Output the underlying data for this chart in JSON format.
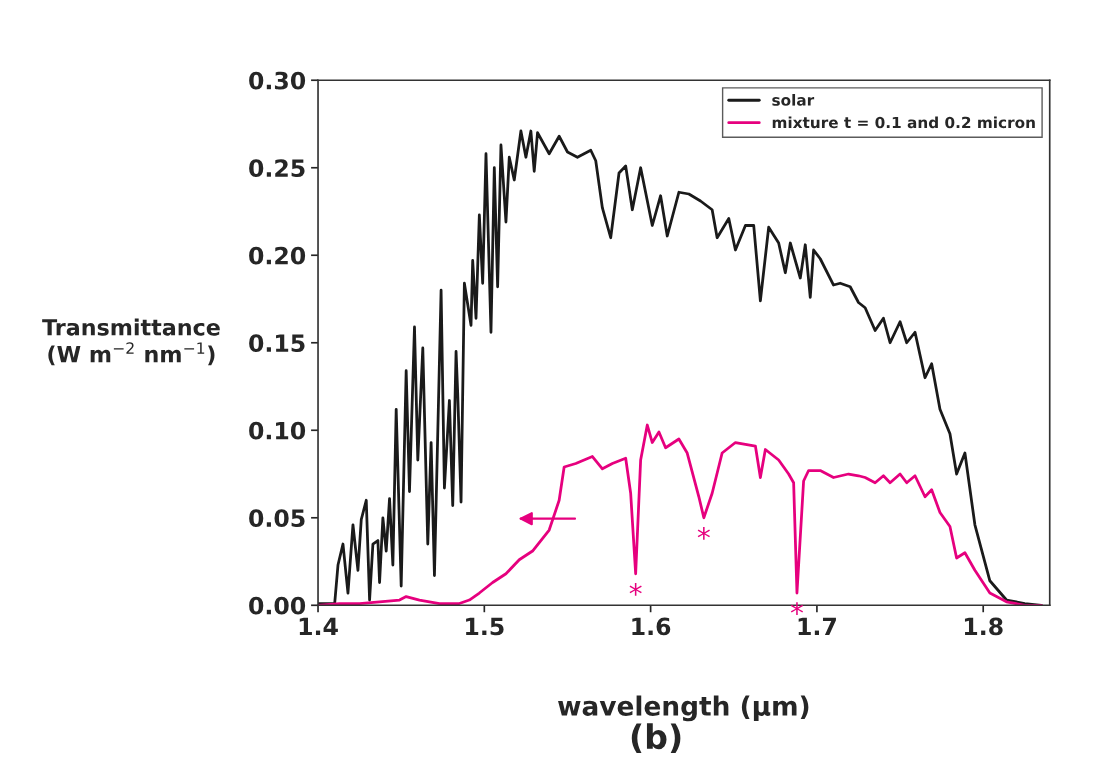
{
  "chart_data": {
    "type": "line",
    "xlabel": "wavelength (μm)",
    "ylabel": "Transmittance\n(W m$^{−2}$ nm$^{−1}$)",
    "xlim": [
      1.4,
      1.84
    ],
    "xticks": [
      1.4,
      1.5,
      1.6,
      1.7,
      1.8
    ],
    "ylim": [
      0,
      0.3
    ],
    "yticks": [
      {
        "value": 0,
        "label": "0.00"
      },
      {
        "value": 0.05,
        "label": "0.05"
      },
      {
        "value": 0.1,
        "label": "0.10"
      },
      {
        "value": 0.15,
        "label": "0.15"
      },
      {
        "value": 0.2,
        "label": "0.20"
      },
      {
        "value": 0.25,
        "label": "0.25"
      },
      {
        "value": 0.3,
        "label": "0.30"
      }
    ],
    "grid": false,
    "legend": "top right",
    "marker": "none",
    "line_style": "solid",
    "series": [
      {
        "name": "solar",
        "color": "#1a1a1a",
        "x": [
          1.4,
          1.41,
          1.412,
          1.415,
          1.418,
          1.421,
          1.424,
          1.426,
          1.429,
          1.431,
          1.433,
          1.436,
          1.437,
          1.439,
          1.441,
          1.443,
          1.445,
          1.447,
          1.45,
          1.453,
          1.455,
          1.458,
          1.46,
          1.463,
          1.466,
          1.468,
          1.47,
          1.474,
          1.476,
          1.479,
          1.481,
          1.483,
          1.484,
          1.486,
          1.488,
          1.492,
          1.493,
          1.495,
          1.497,
          1.499,
          1.501,
          1.504,
          1.506,
          1.508,
          1.51,
          1.513,
          1.515,
          1.518,
          1.522,
          1.525,
          1.528,
          1.53,
          1.532,
          1.539,
          1.545,
          1.55,
          1.556,
          1.564,
          1.567,
          1.571,
          1.576,
          1.581,
          1.585,
          1.589,
          1.594,
          1.601,
          1.606,
          1.61,
          1.617,
          1.623,
          1.63,
          1.637,
          1.64,
          1.647,
          1.651,
          1.657,
          1.662,
          1.666,
          1.671,
          1.677,
          1.681,
          1.684,
          1.69,
          1.693,
          1.696,
          1.698,
          1.702,
          1.71,
          1.714,
          1.72,
          1.725,
          1.729,
          1.735,
          1.74,
          1.744,
          1.75,
          1.754,
          1.759,
          1.765,
          1.769,
          1.774,
          1.78,
          1.784,
          1.789,
          1.795,
          1.804,
          1.814,
          1.825,
          1.835
        ],
        "values": [
          0.001,
          0.001,
          0.023,
          0.035,
          0.007,
          0.046,
          0.02,
          0.049,
          0.06,
          0.003,
          0.035,
          0.037,
          0.013,
          0.05,
          0.031,
          0.061,
          0.023,
          0.112,
          0.011,
          0.134,
          0.065,
          0.159,
          0.083,
          0.147,
          0.035,
          0.093,
          0.017,
          0.18,
          0.067,
          0.117,
          0.057,
          0.145,
          0.121,
          0.059,
          0.184,
          0.16,
          0.197,
          0.164,
          0.223,
          0.184,
          0.258,
          0.156,
          0.25,
          0.182,
          0.263,
          0.219,
          0.256,
          0.243,
          0.271,
          0.256,
          0.271,
          0.248,
          0.27,
          0.258,
          0.268,
          0.259,
          0.256,
          0.26,
          0.254,
          0.227,
          0.21,
          0.247,
          0.251,
          0.226,
          0.25,
          0.217,
          0.234,
          0.211,
          0.236,
          0.235,
          0.231,
          0.226,
          0.21,
          0.221,
          0.203,
          0.217,
          0.217,
          0.174,
          0.216,
          0.207,
          0.19,
          0.207,
          0.187,
          0.206,
          0.176,
          0.203,
          0.198,
          0.183,
          0.184,
          0.182,
          0.173,
          0.17,
          0.157,
          0.164,
          0.15,
          0.162,
          0.15,
          0.156,
          0.13,
          0.138,
          0.112,
          0.098,
          0.075,
          0.087,
          0.046,
          0.014,
          0.003,
          0.001,
          0
        ]
      },
      {
        "name": "mixture t = 0.1 and 0.2 micron",
        "color": "#e6007e",
        "x": [
          1.4,
          1.413,
          1.425,
          1.437,
          1.449,
          1.453,
          1.461,
          1.473,
          1.485,
          1.491,
          1.497,
          1.505,
          1.513,
          1.521,
          1.529,
          1.539,
          1.545,
          1.548,
          1.555,
          1.565,
          1.571,
          1.577,
          1.585,
          1.588,
          1.591,
          1.594,
          1.598,
          1.601,
          1.605,
          1.609,
          1.617,
          1.622,
          1.629,
          1.632,
          1.637,
          1.643,
          1.651,
          1.663,
          1.666,
          1.669,
          1.677,
          1.683,
          1.686,
          1.688,
          1.692,
          1.695,
          1.702,
          1.71,
          1.719,
          1.725,
          1.729,
          1.735,
          1.74,
          1.744,
          1.75,
          1.754,
          1.759,
          1.765,
          1.769,
          1.774,
          1.78,
          1.784,
          1.789,
          1.795,
          1.804,
          1.814,
          1.825,
          1.835
        ],
        "values": [
          0,
          0.001,
          0.001,
          0.002,
          0.003,
          0.005,
          0.003,
          0.001,
          0.001,
          0.003,
          0.007,
          0.013,
          0.018,
          0.026,
          0.031,
          0.043,
          0.06,
          0.079,
          0.081,
          0.085,
          0.078,
          0.081,
          0.084,
          0.064,
          0.018,
          0.083,
          0.103,
          0.093,
          0.099,
          0.09,
          0.095,
          0.087,
          0.062,
          0.05,
          0.064,
          0.087,
          0.093,
          0.091,
          0.073,
          0.089,
          0.083,
          0.075,
          0.07,
          0.007,
          0.071,
          0.077,
          0.077,
          0.073,
          0.075,
          0.074,
          0.073,
          0.07,
          0.074,
          0.07,
          0.075,
          0.07,
          0.074,
          0.062,
          0.066,
          0.053,
          0.045,
          0.027,
          0.03,
          0.02,
          0.007,
          0.002,
          0,
          0
        ]
      }
    ],
    "annotations": [
      {
        "text": "*",
        "x": 1.591,
        "y": 0.018
      },
      {
        "text": "*",
        "x": 1.632,
        "y": 0.05
      },
      {
        "text": "*",
        "x": 1.688,
        "y": 0.007
      },
      "(b)"
    ]
  }
}
